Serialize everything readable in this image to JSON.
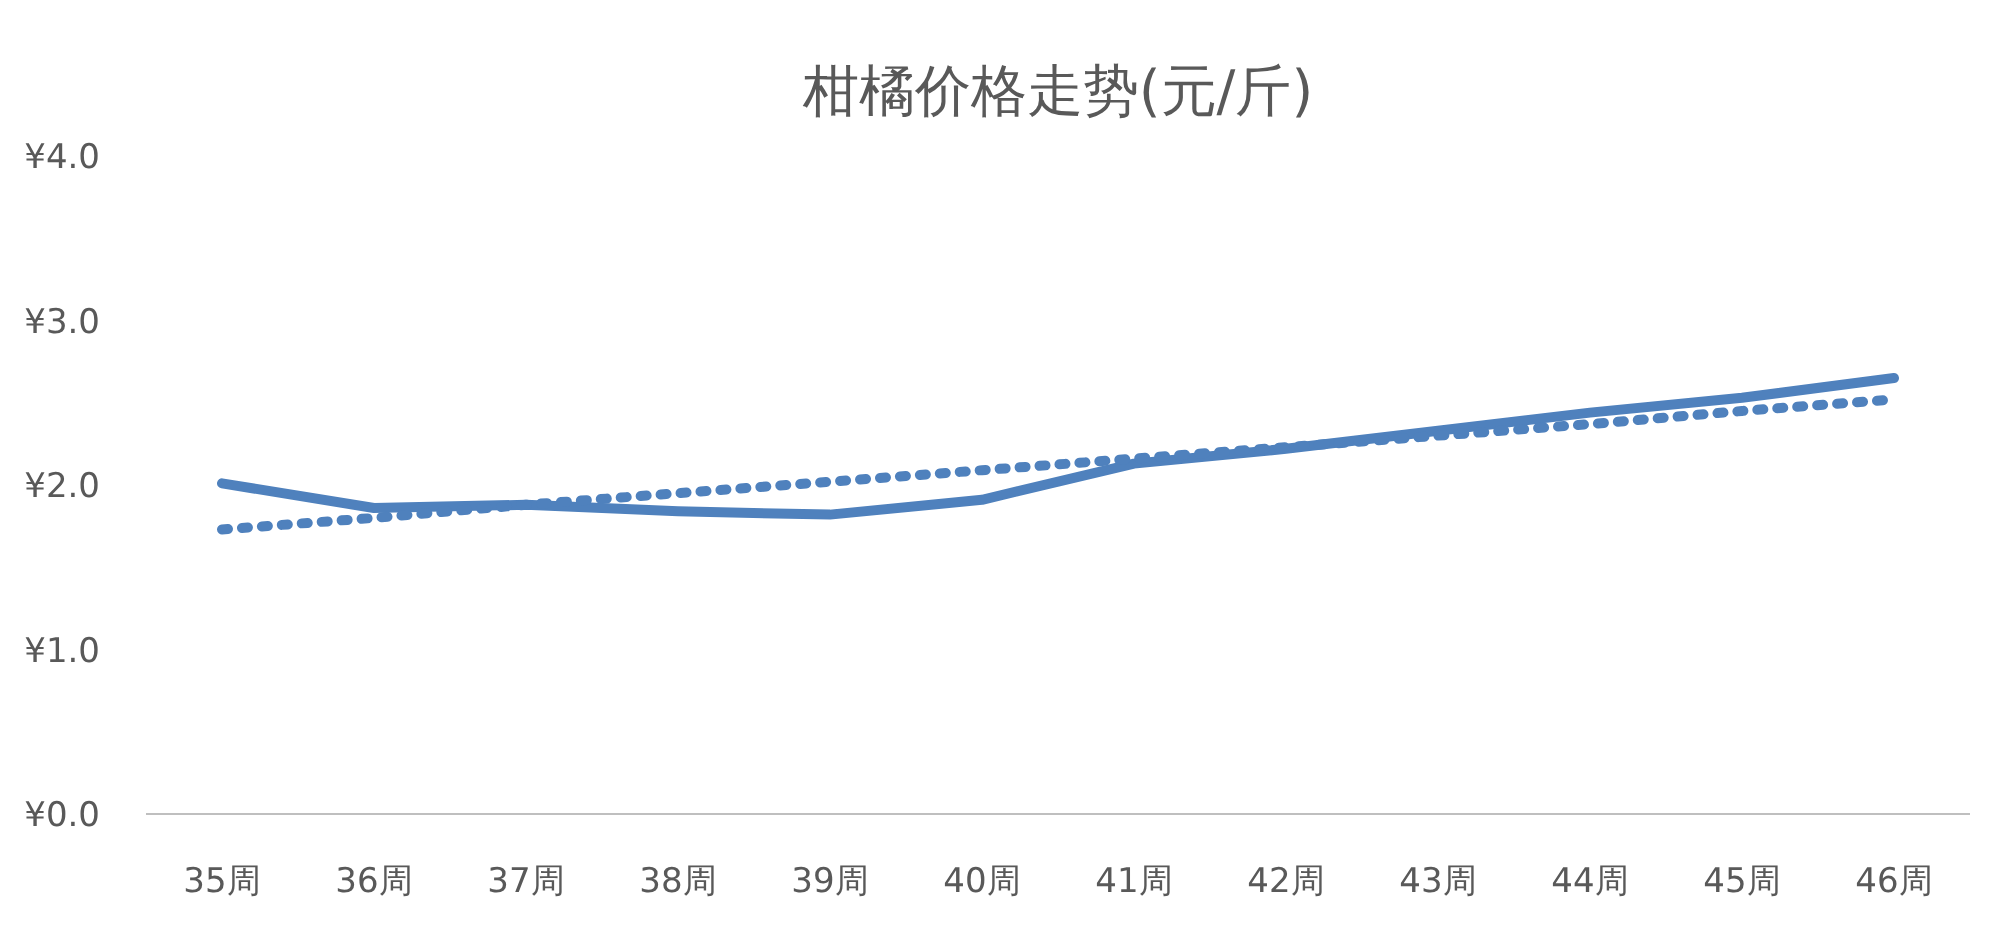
{
  "chart_data": {
    "type": "line",
    "title": "柑橘价格走势(元/斤)",
    "categories": [
      "35周",
      "36周",
      "37周",
      "38周",
      "39周",
      "40周",
      "41周",
      "42周",
      "43周",
      "44周",
      "45周",
      "46周"
    ],
    "series": [
      {
        "color": "#4f81bd",
        "line_style": "solid",
        "values": [
          2.01,
          1.86,
          1.88,
          1.84,
          1.82,
          1.91,
          2.13,
          2.22,
          2.33,
          2.44,
          2.53,
          2.65
        ]
      },
      {
        "color": "#4f81bd",
        "line_style": "dotted",
        "values": [
          1.73,
          1.8,
          1.88,
          1.95,
          2.02,
          2.09,
          2.16,
          2.23,
          2.3,
          2.37,
          2.45,
          2.52
        ]
      }
    ],
    "ylim": [
      0,
      4
    ],
    "yticks": [
      {
        "value": 0,
        "label": "¥0.0"
      },
      {
        "value": 1,
        "label": "¥1.0"
      },
      {
        "value": 2,
        "label": "¥2.0"
      },
      {
        "value": 3,
        "label": "¥3.0"
      },
      {
        "value": 4,
        "label": "¥4.0"
      }
    ],
    "grid": false,
    "marker": "none"
  }
}
